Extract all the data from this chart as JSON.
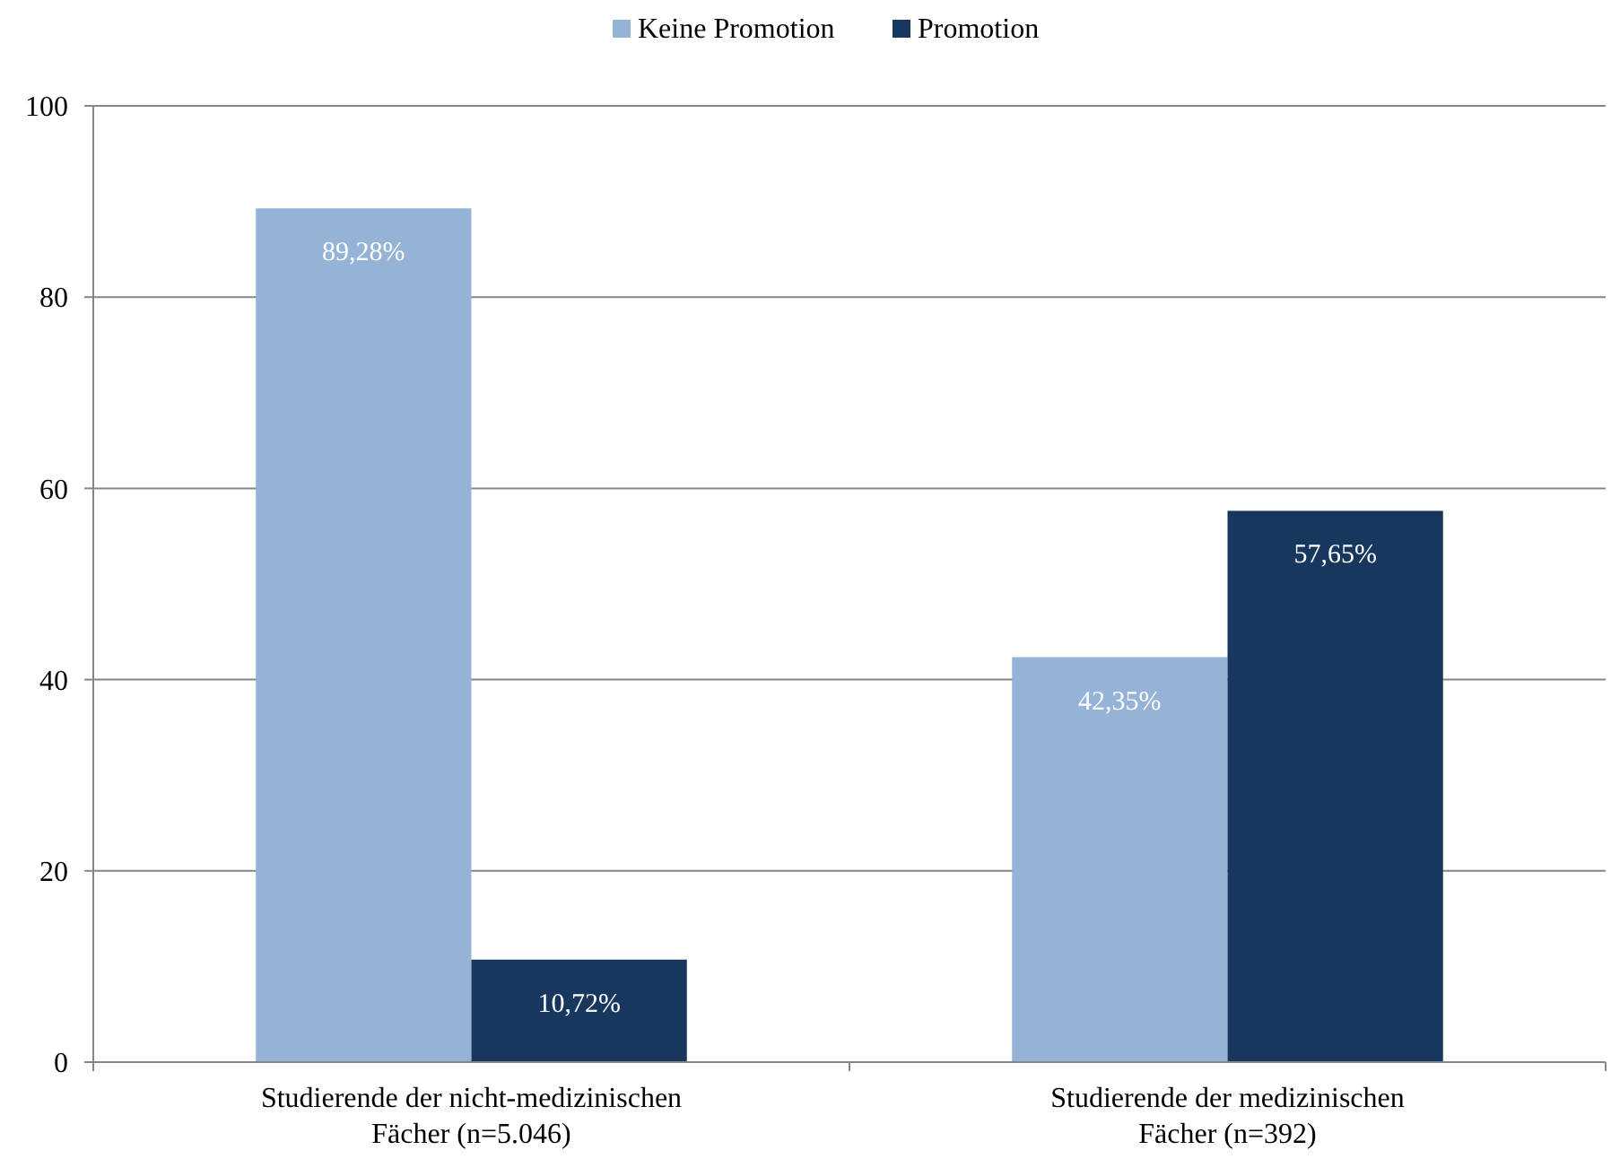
{
  "chart_data": {
    "type": "bar",
    "categories": [
      "Studierende der nicht-medizinischen Fächer (n=5.046)",
      "Studierende der medizinischen Fächer (n=392)"
    ],
    "series": [
      {
        "name": "Keine Promotion",
        "color": "#95b3d7",
        "values": [
          89.28,
          42.35
        ],
        "value_labels": [
          "89,28%",
          "42,35%"
        ]
      },
      {
        "name": "Promotion",
        "color": "#17375e",
        "values": [
          10.72,
          57.65
        ],
        "value_labels": [
          "10,72%",
          "57,65%"
        ]
      }
    ],
    "ylim": [
      0,
      100
    ],
    "yticks": [
      0,
      20,
      40,
      60,
      80,
      100
    ],
    "grid": "y",
    "legend": "top"
  }
}
